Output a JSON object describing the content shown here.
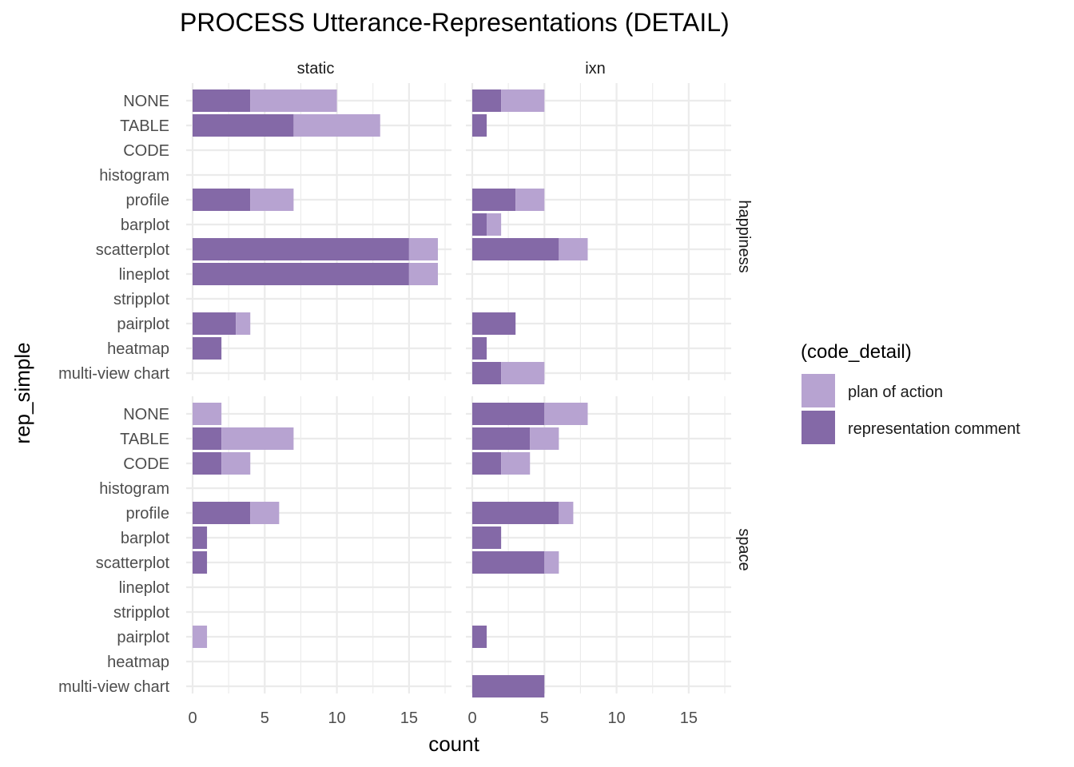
{
  "chart_data": {
    "type": "bar",
    "orientation": "horizontal",
    "stacked": true,
    "title": "PROCESS Utterance-Representations (DETAIL)",
    "xlabel": "count",
    "ylabel": "rep_simple",
    "xlim": [
      0,
      17.5
    ],
    "xticks": [
      "0",
      "5",
      "10",
      "15"
    ],
    "grid": true,
    "facet_columns": [
      "static",
      "ixn"
    ],
    "facet_rows": [
      "happiness",
      "space"
    ],
    "categories": [
      "NONE",
      "TABLE",
      "CODE",
      "histogram",
      "profile",
      "barplot",
      "scatterplot",
      "lineplot",
      "stripplot",
      "pairplot",
      "heatmap",
      "multi-view chart"
    ],
    "legend": {
      "title": "(code_detail)",
      "position": "right",
      "entries": [
        {
          "name": "plan of action",
          "color": "#b7a3d1"
        },
        {
          "name": "representation comment",
          "color": "#8469a7"
        }
      ]
    },
    "panels": [
      {
        "row": "happiness",
        "col": "static",
        "series": [
          {
            "name": "representation comment",
            "values": [
              4,
              7,
              0,
              0,
              4,
              0,
              15,
              15,
              0,
              3,
              2,
              0
            ]
          },
          {
            "name": "plan of action",
            "values": [
              6,
              6,
              0,
              0,
              3,
              0,
              2,
              2,
              0,
              1,
              0,
              0
            ]
          }
        ]
      },
      {
        "row": "happiness",
        "col": "ixn",
        "series": [
          {
            "name": "representation comment",
            "values": [
              2,
              1,
              0,
              0,
              3,
              1,
              6,
              0,
              0,
              3,
              1,
              2
            ]
          },
          {
            "name": "plan of action",
            "values": [
              3,
              0,
              0,
              0,
              2,
              1,
              2,
              0,
              0,
              0,
              0,
              3
            ]
          }
        ]
      },
      {
        "row": "space",
        "col": "static",
        "series": [
          {
            "name": "representation comment",
            "values": [
              0,
              2,
              2,
              0,
              4,
              1,
              1,
              0,
              0,
              0,
              0,
              0
            ]
          },
          {
            "name": "plan of action",
            "values": [
              2,
              5,
              2,
              0,
              2,
              0,
              0,
              0,
              0,
              1,
              0,
              0
            ]
          }
        ]
      },
      {
        "row": "space",
        "col": "ixn",
        "series": [
          {
            "name": "representation comment",
            "values": [
              5,
              4,
              2,
              0,
              6,
              2,
              5,
              0,
              0,
              1,
              0,
              5
            ]
          },
          {
            "name": "plan of action",
            "values": [
              3,
              2,
              2,
              0,
              1,
              0,
              1,
              0,
              0,
              0,
              0,
              0
            ]
          }
        ]
      }
    ]
  }
}
